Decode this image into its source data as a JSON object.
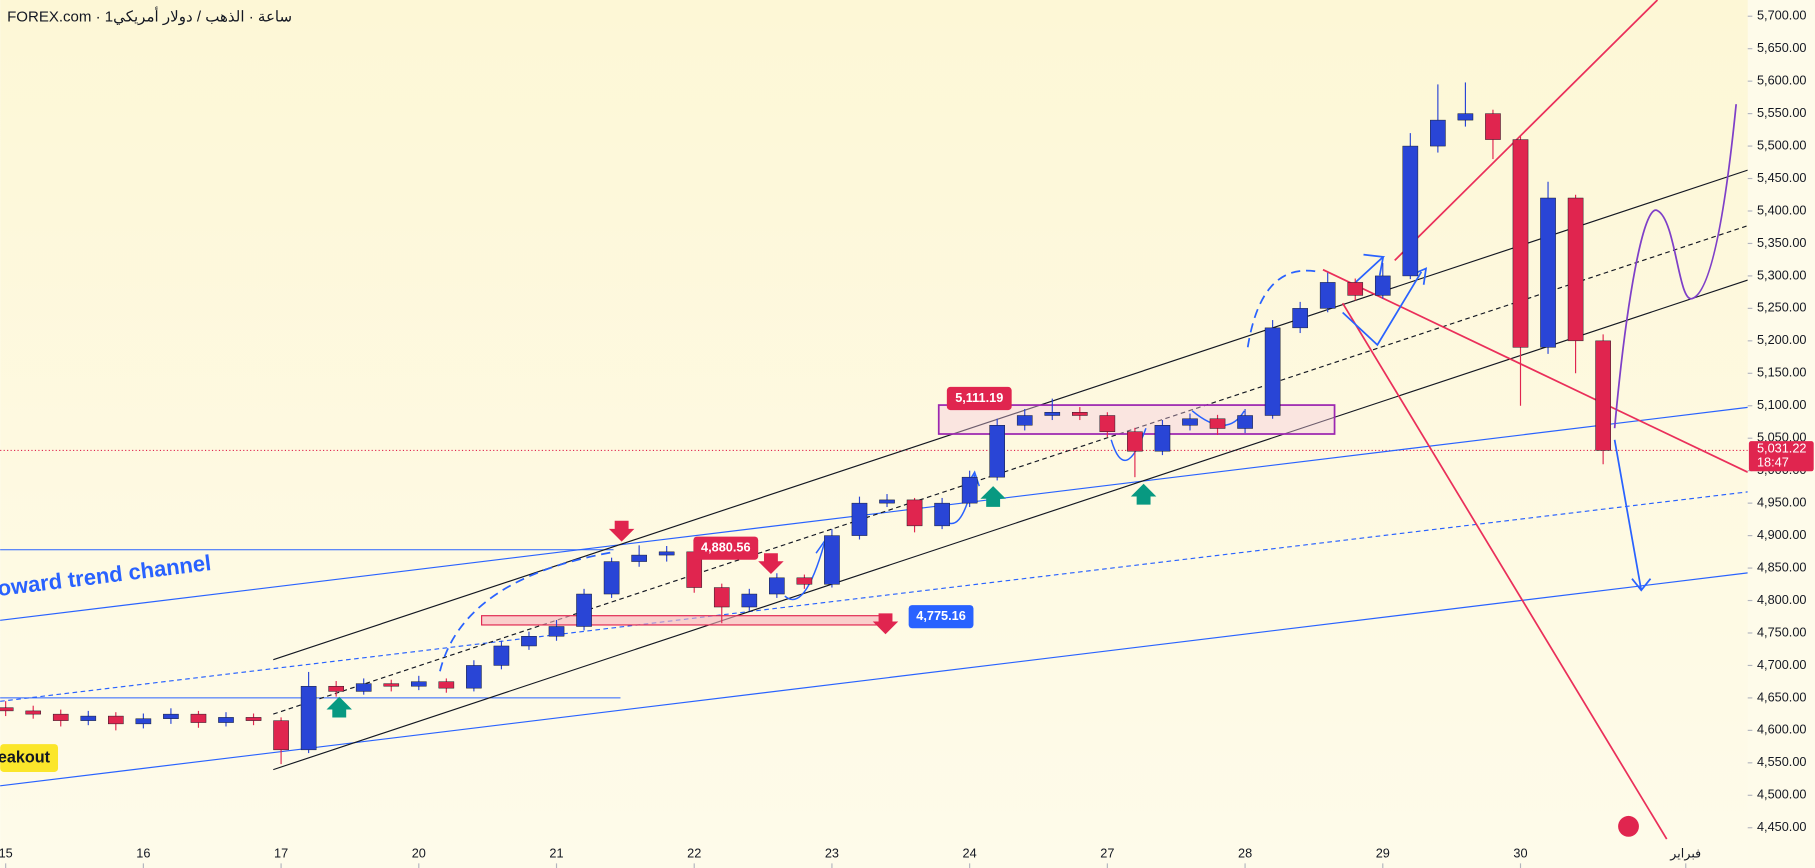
{
  "chart_data": {
    "type": "candlestick",
    "title": "FOREX.com · 1ساعة · الذهب / دولار أمريكي",
    "up_color": "#2945d6",
    "down_color": "#e0254f",
    "xlim": [
      -0.04,
      12.65
    ],
    "xticks": [
      {
        "value": 0,
        "label": "15"
      },
      {
        "value": 1,
        "label": "16"
      },
      {
        "value": 2,
        "label": "17"
      },
      {
        "value": 3,
        "label": "20"
      },
      {
        "value": 4,
        "label": "21"
      },
      {
        "value": 5,
        "label": "22"
      },
      {
        "value": 6,
        "label": "23"
      },
      {
        "value": 7,
        "label": "24"
      },
      {
        "value": 8,
        "label": "27"
      },
      {
        "value": 9,
        "label": "28"
      },
      {
        "value": 10,
        "label": "29"
      },
      {
        "value": 11,
        "label": "30"
      },
      {
        "value": 12.2,
        "label": "فبراير"
      }
    ],
    "ylim": [
      4388,
      5725
    ],
    "yticks": [
      {
        "value": 4450,
        "label": "4,450.00"
      },
      {
        "value": 4500,
        "label": "4,500.00"
      },
      {
        "value": 4550,
        "label": "4,550.00"
      },
      {
        "value": 4600,
        "label": "4,600.00"
      },
      {
        "value": 4650,
        "label": "4,650.00"
      },
      {
        "value": 4700,
        "label": "4,700.00"
      },
      {
        "value": 4750,
        "label": "4,750.00"
      },
      {
        "value": 4800,
        "label": "4,800.00"
      },
      {
        "value": 4850,
        "label": "4,850.00"
      },
      {
        "value": 4900,
        "label": "4,900.00"
      },
      {
        "value": 4950,
        "label": "4,950.00"
      },
      {
        "value": 5000,
        "label": "5,000.00"
      },
      {
        "value": 5050,
        "label": "5,050.00"
      },
      {
        "value": 5100,
        "label": "5,100.00"
      },
      {
        "value": 5150,
        "label": "5,150.00"
      },
      {
        "value": 5200,
        "label": "5,200.00"
      },
      {
        "value": 5250,
        "label": "5,250.00"
      },
      {
        "value": 5300,
        "label": "5,300.00"
      },
      {
        "value": 5350,
        "label": "5,350.00"
      },
      {
        "value": 5400,
        "label": "5,400.00"
      },
      {
        "value": 5450,
        "label": "5,450.00"
      },
      {
        "value": 5500,
        "label": "5,500.00"
      },
      {
        "value": 5550,
        "label": "5,550.00"
      },
      {
        "value": 5600,
        "label": "5,600.00"
      },
      {
        "value": 5650,
        "label": "5,650.00"
      },
      {
        "value": 5700,
        "label": "5,700.00"
      }
    ],
    "x": [
      0,
      0.2,
      0.4,
      0.6,
      0.8,
      1,
      1.2,
      1.4,
      1.6,
      1.8,
      2,
      2.2,
      2.4,
      2.6,
      2.8,
      3,
      3.2,
      3.4,
      3.6,
      3.8,
      4,
      4.2,
      4.4,
      4.6,
      4.8,
      5,
      5.2,
      5.4,
      5.6,
      5.8,
      6,
      6.2,
      6.4,
      6.6,
      6.8,
      7,
      7.2,
      7.4,
      7.6,
      7.8,
      8,
      8.2,
      8.4,
      8.6,
      8.8,
      9,
      9.2,
      9.4,
      9.6,
      9.8,
      10,
      10.2,
      10.4,
      10.6,
      10.8,
      11,
      11.2,
      11.4,
      11.6
    ],
    "open": [
      4635,
      4630,
      4625,
      4615,
      4622,
      4610,
      4618,
      4625,
      4612,
      4620,
      4615,
      4570,
      4668,
      4660,
      4672,
      4668,
      4675,
      4665,
      4700,
      4730,
      4745,
      4760,
      4810,
      4860,
      4870,
      4875,
      4820,
      4790,
      4810,
      4835,
      4825,
      4900,
      4950,
      4955,
      4915,
      4950,
      4990,
      5070,
      5085,
      5090,
      5085,
      5060,
      5030,
      5070,
      5080,
      5065,
      5085,
      5220,
      5250,
      5290,
      5270,
      5300,
      5500,
      5540,
      5550,
      5510,
      5190,
      5420,
      5200
    ],
    "high": [
      4645,
      4638,
      4632,
      4630,
      4628,
      4626,
      4634,
      4630,
      4628,
      4626,
      4620,
      4690,
      4676,
      4680,
      4678,
      4684,
      4680,
      4708,
      4738,
      4752,
      4770,
      4818,
      4866,
      4885,
      4884,
      4880,
      4826,
      4818,
      4842,
      4840,
      4910,
      4960,
      4964,
      4958,
      4958,
      5000,
      5080,
      5095,
      5111,
      5098,
      5090,
      5066,
      5078,
      5088,
      5086,
      5095,
      5232,
      5260,
      5305,
      5296,
      5320,
      5520,
      5595,
      5598,
      5556,
      5515,
      5445,
      5425,
      5210
    ],
    "low": [
      4622,
      4618,
      4606,
      4608,
      4600,
      4603,
      4610,
      4604,
      4606,
      4608,
      4548,
      4565,
      4652,
      4655,
      4660,
      4662,
      4658,
      4660,
      4694,
      4724,
      4738,
      4754,
      4804,
      4852,
      4860,
      4812,
      4765,
      4784,
      4804,
      4818,
      4820,
      4894,
      4944,
      4905,
      4910,
      4944,
      4985,
      5062,
      5078,
      5078,
      5052,
      4990,
      5024,
      5062,
      5055,
      5058,
      5080,
      5212,
      5244,
      5262,
      5265,
      5295,
      5490,
      5530,
      5480,
      5100,
      5180,
      5150,
      5010
    ],
    "close": [
      4630,
      4625,
      4615,
      4622,
      4610,
      4618,
      4625,
      4612,
      4620,
      4615,
      4570,
      4668,
      4660,
      4672,
      4668,
      4675,
      4665,
      4700,
      4730,
      4745,
      4760,
      4810,
      4860,
      4870,
      4875,
      4820,
      4790,
      4810,
      4835,
      4825,
      4900,
      4950,
      4955,
      4915,
      4950,
      4990,
      5070,
      5085,
      5090,
      5085,
      5060,
      5030,
      5070,
      5080,
      5065,
      5085,
      5220,
      5250,
      5290,
      5270,
      5300,
      5500,
      5540,
      5550,
      5510,
      5190,
      5420,
      5200,
      5031.22
    ],
    "last_price": {
      "value": 5031.22,
      "label": "5,031.22",
      "countdown": "18:47",
      "color": "#e0254f"
    },
    "price_labels": [
      {
        "value": 5111.19,
        "label": "5,111.19",
        "color": "#e0254f"
      },
      {
        "value": 4880.56,
        "label": "4,880.56",
        "color": "#e0254f"
      },
      {
        "value": 4775.16,
        "label": "4,775.16",
        "color": "#2962ff"
      }
    ],
    "annotations": [
      "oward trend channel",
      "eakout"
    ]
  }
}
